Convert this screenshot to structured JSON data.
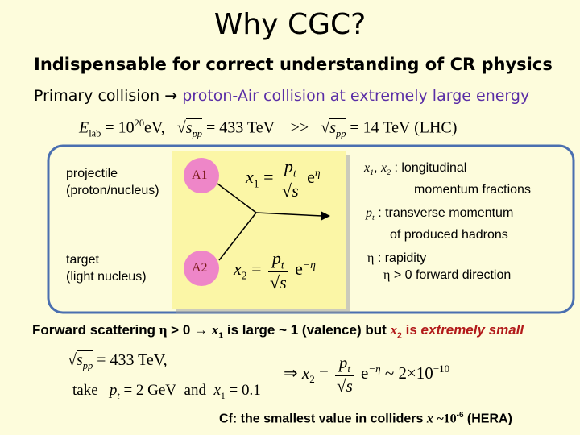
{
  "title": "Why CGC?",
  "heading": "Indispensable for correct understanding of CR physics",
  "subheading": {
    "left": "Primary collision",
    "arrow": "→",
    "right": "proton-Air collision at extremely large energy"
  },
  "energy_eq": {
    "e": "E",
    "e_sub": "lab",
    "eq1": "= 10",
    "exp": "20",
    "unit1": "eV,",
    "root1": "√",
    "s1": "s",
    "s1_sub": "pp",
    "eq2": "= 433 TeV",
    "gg": ">>",
    "root2": "√",
    "s2": "s",
    "s2_sub": "pp",
    "eq3": "= 14 TeV (LHC)"
  },
  "diagram": {
    "projectile": [
      "projectile",
      "(proton/nucleus)"
    ],
    "target": [
      "target",
      "(light nucleus)"
    ],
    "a1": "A1",
    "a2": "A2",
    "x1_eq": {
      "x": "x",
      "sub": "1",
      "eq": "=",
      "num": "p",
      "num_sub": "t",
      "root": "√",
      "den": "s",
      "base": "e",
      "exp": "η"
    },
    "x2_eq": {
      "x": "x",
      "sub": "2",
      "eq": "=",
      "num": "p",
      "num_sub": "t",
      "root": "√",
      "den": "s",
      "base": "e",
      "exp": "−η"
    },
    "x_def": {
      "x1": "x",
      "x1_sub": "1",
      "sep": ",",
      "x2": "x",
      "x2_sub": "2",
      "text": ":  longitudinal",
      "text2": "momentum fractions"
    },
    "pt_def": {
      "p": "p",
      "sub": "t",
      "text": ": transverse momentum",
      "text2": "of produced hadrons"
    },
    "eta_def": {
      "eta": "η",
      "text": ": rapidity",
      "eta2": "η",
      "text2": "> 0  forward direction"
    }
  },
  "forward": {
    "a": "Forward scattering",
    "eta": "η",
    "b": "> 0",
    "arrow": "→",
    "x1": "x",
    "x1_sub": "1",
    "c": "is large ~ 1 (valence) but",
    "x2": "x",
    "x2_sub": "2",
    "d": "is",
    "e": "extremely small"
  },
  "bottom": {
    "root": "√",
    "s": "s",
    "s_sub": "pp",
    "eq": "= 433 TeV,",
    "take": "take",
    "p": "p",
    "p_sub": "t",
    "eq2": "= 2 GeV",
    "and": "and",
    "x": "x",
    "x_sub": "1",
    "eq3": "= 0.1",
    "implies": "⇒",
    "x2": "x",
    "x2_sub": "2",
    "eq4": "=",
    "num": "p",
    "num_sub": "t",
    "root2": "√",
    "den": "s",
    "e": "e",
    "exp": "−η",
    "approx": "~ 2×10",
    "exp2": "−10"
  },
  "cf": {
    "text": "Cf: the smallest value in colliders",
    "x": "x",
    "approx": "~10",
    "exp": "-6",
    "hera": "(HERA)"
  }
}
